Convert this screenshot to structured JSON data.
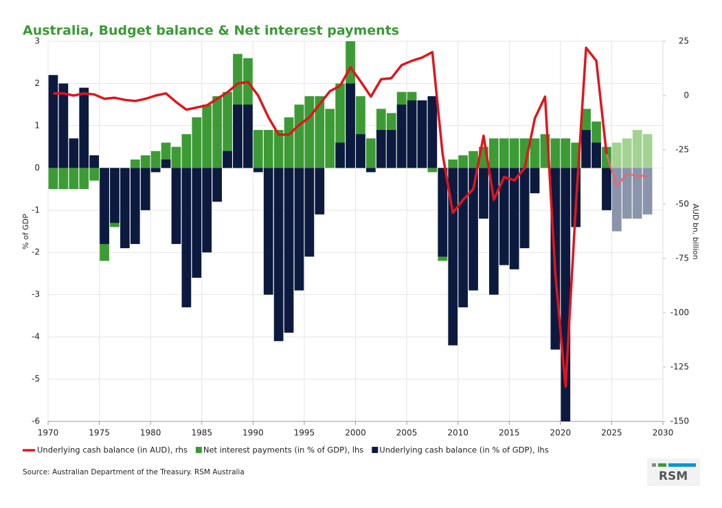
{
  "chart_data": {
    "type": "bar",
    "title": "Australia, Budget balance & Net interest payments",
    "y_label": "% of GDP",
    "y2_label": "AUD bn, billion",
    "source": "Source: Australian Department of the Treasury. RSM Australia",
    "logo": "RSM",
    "x": [
      1970,
      1971,
      1972,
      1973,
      1974,
      1975,
      1976,
      1977,
      1978,
      1979,
      1980,
      1981,
      1982,
      1983,
      1984,
      1985,
      1986,
      1987,
      1988,
      1989,
      1990,
      1991,
      1992,
      1993,
      1994,
      1995,
      1996,
      1997,
      1998,
      1999,
      2000,
      2001,
      2002,
      2003,
      2004,
      2005,
      2006,
      2007,
      2008,
      2009,
      2010,
      2011,
      2012,
      2013,
      2014,
      2015,
      2016,
      2017,
      2018,
      2019,
      2020,
      2021,
      2022,
      2023,
      2024,
      2025,
      2026,
      2027,
      2028
    ],
    "xlim": [
      1970,
      2030
    ],
    "xticks": [
      1970,
      1975,
      1980,
      1985,
      1990,
      1995,
      2000,
      2005,
      2010,
      2015,
      2020,
      2025,
      2030
    ],
    "ylim": [
      -6,
      3
    ],
    "yticks": [
      -6,
      -5,
      -4,
      -3,
      -2,
      -1,
      0,
      1,
      2,
      3
    ],
    "y2lim": [
      -150,
      25
    ],
    "y2ticks": [
      -150,
      -125,
      -100,
      -75,
      -50,
      -25,
      0,
      25
    ],
    "grid": true,
    "series": [
      {
        "name": "Underlying cash balance (in AUD), rhs",
        "type": "line",
        "axis": "y2",
        "color": "#e3131b",
        "colors": [
          "#e3131b",
          "#e3131b",
          "#e3131b",
          "#e3131b",
          "#e3131b",
          "#e3131b",
          "#e3131b",
          "#e3131b",
          "#e3131b",
          "#e3131b",
          "#e3131b",
          "#e3131b",
          "#e3131b",
          "#e3131b",
          "#e3131b",
          "#e3131b",
          "#e3131b",
          "#e3131b",
          "#e3131b",
          "#e3131b",
          "#e3131b",
          "#e3131b",
          "#e3131b",
          "#e3131b",
          "#e3131b",
          "#e3131b",
          "#e3131b",
          "#e3131b",
          "#e3131b",
          "#e3131b",
          "#e3131b",
          "#e3131b",
          "#e3131b",
          "#e3131b",
          "#e3131b",
          "#e3131b",
          "#e3131b",
          "#e3131b",
          "#e3131b",
          "#e3131b",
          "#e3131b",
          "#e3131b",
          "#e3131b",
          "#e3131b",
          "#e3131b",
          "#e3131b",
          "#e3131b",
          "#e3131b",
          "#e3131b",
          "#e3131b",
          "#e3131b",
          "#e3131b",
          "#e3131b",
          "#e3131b",
          "#e3131b",
          "#e8666d",
          "#e8666d",
          "#e8666d",
          "#e8666d"
        ],
        "values": [
          1,
          1,
          0,
          1,
          0.5,
          -1.5,
          -1,
          -2,
          -2.5,
          -1.5,
          0,
          1,
          -3,
          -6.5,
          -5.5,
          -4.5,
          -1.5,
          1.5,
          5.5,
          6.3,
          0,
          -10,
          -18,
          -18,
          -13.5,
          -10,
          -4,
          2,
          4.5,
          13,
          6.5,
          -0.5,
          7.5,
          8,
          14,
          16,
          17.5,
          20,
          -27,
          -54,
          -48,
          -43,
          -18.5,
          -48,
          -37.5,
          -39,
          -33.5,
          -10.5,
          -0.5,
          -82,
          -134,
          -51,
          22,
          16,
          -27,
          -41.5,
          -36,
          -37,
          -37
        ]
      },
      {
        "name": "Net interest payments (in % of GDP), lhs",
        "type": "bar",
        "color": "#3d9b35",
        "colors": [
          "#3d9b35",
          "#3d9b35",
          "#3d9b35",
          "#3d9b35",
          "#3d9b35",
          "#3d9b35",
          "#3d9b35",
          "#3d9b35",
          "#3d9b35",
          "#3d9b35",
          "#3d9b35",
          "#3d9b35",
          "#3d9b35",
          "#3d9b35",
          "#3d9b35",
          "#3d9b35",
          "#3d9b35",
          "#3d9b35",
          "#3d9b35",
          "#3d9b35",
          "#3d9b35",
          "#3d9b35",
          "#3d9b35",
          "#3d9b35",
          "#3d9b35",
          "#3d9b35",
          "#3d9b35",
          "#3d9b35",
          "#3d9b35",
          "#3d9b35",
          "#3d9b35",
          "#3d9b35",
          "#3d9b35",
          "#3d9b35",
          "#3d9b35",
          "#3d9b35",
          "#3d9b35",
          "#3d9b35",
          "#3d9b35",
          "#3d9b35",
          "#3d9b35",
          "#3d9b35",
          "#3d9b35",
          "#3d9b35",
          "#3d9b35",
          "#3d9b35",
          "#3d9b35",
          "#3d9b35",
          "#3d9b35",
          "#3d9b35",
          "#3d9b35",
          "#3d9b35",
          "#3d9b35",
          "#3d9b35",
          "#3d9b35",
          "#a3d393",
          "#a3d393",
          "#a3d393",
          "#a3d393"
        ],
        "values": [
          -0.5,
          -0.5,
          -0.5,
          -0.5,
          -0.3,
          -2.2,
          -1.4,
          0,
          0.2,
          0.3,
          0.4,
          0.6,
          0.5,
          0.8,
          1.2,
          1.5,
          1.7,
          1.8,
          2.7,
          2.6,
          0.9,
          0.9,
          0.9,
          1.2,
          1.5,
          1.7,
          1.7,
          1.4,
          2.0,
          3.0,
          1.7,
          0.7,
          1.4,
          1.3,
          1.8,
          1.8,
          1.6,
          -0.1,
          -2.2,
          0.2,
          0.3,
          0.4,
          0.5,
          0.7,
          0.7,
          0.7,
          0.7,
          0.7,
          0.8,
          0.7,
          0.7,
          0.6,
          1.4,
          1.1,
          0.5,
          0.6,
          0.7,
          0.9,
          0.8
        ]
      },
      {
        "name": "Underlying cash balance (in % of GDP), lhs",
        "type": "bar",
        "color": "#0c1a40",
        "colors": [
          "#0c1a40",
          "#0c1a40",
          "#0c1a40",
          "#0c1a40",
          "#0c1a40",
          "#0c1a40",
          "#0c1a40",
          "#0c1a40",
          "#0c1a40",
          "#0c1a40",
          "#0c1a40",
          "#0c1a40",
          "#0c1a40",
          "#0c1a40",
          "#0c1a40",
          "#0c1a40",
          "#0c1a40",
          "#0c1a40",
          "#0c1a40",
          "#0c1a40",
          "#0c1a40",
          "#0c1a40",
          "#0c1a40",
          "#0c1a40",
          "#0c1a40",
          "#0c1a40",
          "#0c1a40",
          "#0c1a40",
          "#0c1a40",
          "#0c1a40",
          "#0c1a40",
          "#0c1a40",
          "#0c1a40",
          "#0c1a40",
          "#0c1a40",
          "#0c1a40",
          "#0c1a40",
          "#0c1a40",
          "#0c1a40",
          "#0c1a40",
          "#0c1a40",
          "#0c1a40",
          "#0c1a40",
          "#0c1a40",
          "#0c1a40",
          "#0c1a40",
          "#0c1a40",
          "#0c1a40",
          "#0c1a40",
          "#0c1a40",
          "#0c1a40",
          "#0c1a40",
          "#0c1a40",
          "#0c1a40",
          "#0c1a40",
          "#8a94ab",
          "#8a94ab",
          "#8a94ab",
          "#8a94ab"
        ],
        "values": [
          2.2,
          2.0,
          0.7,
          1.9,
          0.3,
          -1.8,
          -1.3,
          -1.9,
          -1.8,
          -1.0,
          -0.1,
          0.2,
          -1.8,
          -3.3,
          -2.6,
          -2.0,
          -0.8,
          0.4,
          1.5,
          1.5,
          -0.1,
          -3.0,
          -4.1,
          -3.9,
          -2.9,
          -2.1,
          -1.1,
          0,
          0.6,
          2.0,
          0.8,
          -0.1,
          0.9,
          0.9,
          1.5,
          1.6,
          1.6,
          1.7,
          -2.1,
          -4.2,
          -3.3,
          -2.9,
          -1.2,
          -3.0,
          -2.3,
          -2.4,
          -1.9,
          -0.6,
          0,
          -4.3,
          -6.0,
          -1.4,
          0.9,
          0.6,
          -1.0,
          -1.5,
          -1.2,
          -1.2,
          -1.1
        ]
      }
    ]
  }
}
